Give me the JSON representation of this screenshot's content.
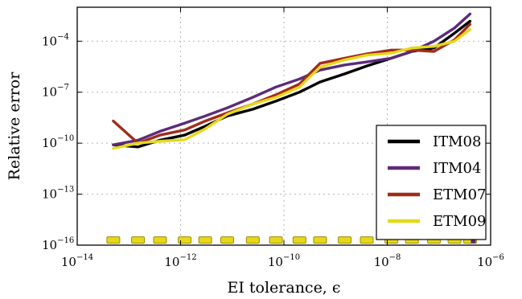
{
  "chart_data": {
    "type": "line",
    "title": "",
    "xlabel": "EI tolerance, ϵ",
    "ylabel": "Relative error",
    "xscale": "log",
    "yscale": "log",
    "xlim": [
      1e-14,
      1e-06
    ],
    "ylim": [
      1e-16,
      0.01
    ],
    "grid": true,
    "legend": "lower-right",
    "x_ticks": [
      {
        "base": "10",
        "exp": "−14"
      },
      {
        "base": "10",
        "exp": "−12"
      },
      {
        "base": "10",
        "exp": "−10"
      },
      {
        "base": "10",
        "exp": "−8"
      },
      {
        "base": "10",
        "exp": "−6"
      }
    ],
    "y_ticks": [
      {
        "base": "10",
        "exp": "−16"
      },
      {
        "base": "10",
        "exp": "−13"
      },
      {
        "base": "10",
        "exp": "−10"
      },
      {
        "base": "10",
        "exp": "−7"
      },
      {
        "base": "10",
        "exp": "−4"
      }
    ],
    "x_tick_values": [
      1e-14,
      1e-12,
      1e-10,
      1e-08,
      1e-06
    ],
    "y_tick_values": [
      1e-16,
      1e-13,
      1e-10,
      1e-07,
      0.0001
    ],
    "x": [
      5e-14,
      1.5e-13,
      4e-13,
      1.2e-12,
      3e-12,
      8e-12,
      2.5e-11,
      7e-11,
      2e-10,
      5e-10,
      1.5e-09,
      4e-09,
      1.2e-08,
      3e-08,
      8e-08,
      2e-07,
      4e-07
    ],
    "series": [
      {
        "name": "ITM08",
        "color": "#000000",
        "values": [
          8e-11,
          6e-11,
          1.5e-10,
          3e-10,
          1e-09,
          4e-09,
          1e-08,
          3e-08,
          1e-07,
          4e-07,
          1.2e-06,
          3.5e-06,
          1e-05,
          2.5e-05,
          4e-05,
          0.0003,
          0.0015
        ]
      },
      {
        "name": "ITM04",
        "color": "#5c2b7b",
        "values": [
          8e-11,
          1.5e-10,
          5e-10,
          1.5e-09,
          4e-09,
          1.2e-08,
          5e-08,
          2e-07,
          6e-07,
          2e-06,
          4e-06,
          6e-06,
          1e-05,
          2.5e-05,
          0.0001,
          0.0006,
          0.004
        ]
      },
      {
        "name": "ETM07",
        "color": "#a02c1b",
        "values": [
          2e-09,
          1e-10,
          3e-10,
          6e-10,
          2e-09,
          6e-09,
          2e-08,
          7e-08,
          3e-07,
          5e-06,
          1e-05,
          1.8e-05,
          3e-05,
          3e-05,
          2.5e-05,
          0.00012,
          0.001
        ]
      },
      {
        "name": "ETM09",
        "color": "#e5d81a",
        "values": [
          5e-11,
          1e-10,
          1.3e-10,
          1.6e-10,
          7e-10,
          5e-09,
          2e-08,
          5e-08,
          2e-07,
          3e-06,
          8e-06,
          1.5e-05,
          2e-05,
          4e-05,
          5e-05,
          0.0001,
          0.0005
        ]
      }
    ],
    "floor_markers": {
      "y": 2e-16,
      "x": [
        5e-14,
        1.5e-13,
        4e-13,
        1.2e-12,
        3e-12,
        8e-12,
        2.5e-11,
        7e-11,
        2e-10,
        5e-10,
        1.5e-09,
        4e-09,
        1.2e-08,
        3e-08,
        8e-08,
        2e-07,
        4e-07
      ],
      "color": "#e5d81a",
      "edge_color": "#a08c00",
      "last_color": "#5c2b7b"
    }
  }
}
